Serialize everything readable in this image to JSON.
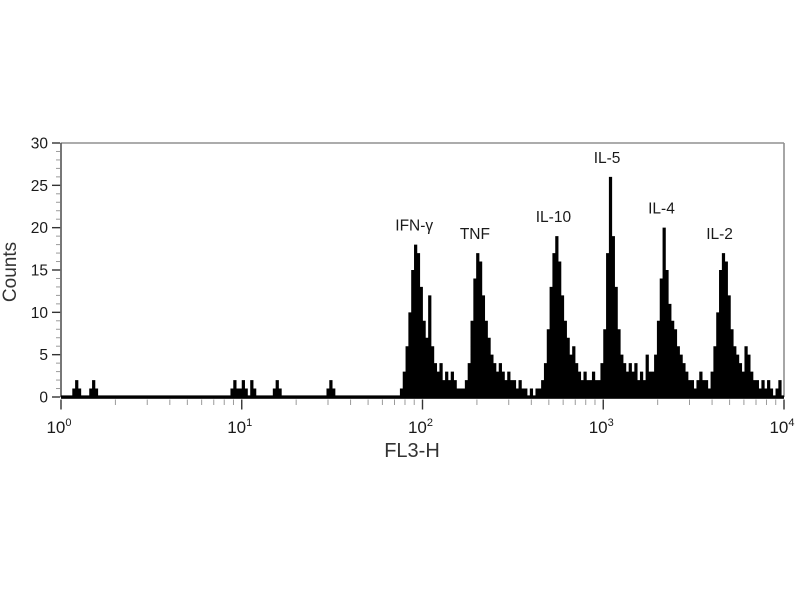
{
  "chart_data": {
    "type": "bar",
    "subtype": "flow-cytometry-histogram",
    "title": "",
    "xlabel": "FL3-H",
    "ylabel": "Counts",
    "x_scale": "log",
    "x_range": [
      1,
      10000
    ],
    "y_range": [
      0,
      30
    ],
    "grid": "off",
    "legend": "none",
    "y_major_tick_step": 5,
    "y_minor_tick_step": 1,
    "y_tick_labels": [
      "0",
      "5",
      "10",
      "15",
      "20",
      "25",
      "30"
    ],
    "x_tick_base": "10",
    "x_tick_exponents": [
      0,
      1,
      2,
      3,
      4
    ],
    "bins_per_decade": 64,
    "bins": [
      0,
      0,
      0,
      0,
      1,
      2,
      1,
      0,
      0,
      0,
      1,
      2,
      1,
      0,
      0,
      0,
      0,
      0,
      0,
      0,
      0,
      0,
      0,
      0,
      0,
      0,
      0,
      0,
      0,
      0,
      0,
      0,
      0,
      0,
      0,
      0,
      0,
      0,
      0,
      0,
      0,
      0,
      0,
      0,
      0,
      0,
      0,
      0,
      0,
      0,
      0,
      0,
      0,
      0,
      0,
      0,
      0,
      0,
      0,
      0,
      1,
      2,
      1,
      1,
      2,
      1,
      0,
      2,
      1,
      0,
      0,
      0,
      0,
      0,
      0,
      1,
      2,
      1,
      0,
      0,
      0,
      0,
      0,
      0,
      0,
      0,
      0,
      0,
      0,
      0,
      0,
      0,
      0,
      0,
      1,
      2,
      1,
      0,
      0,
      0,
      0,
      0,
      0,
      0,
      0,
      0,
      0,
      0,
      0,
      0,
      0,
      0,
      0,
      0,
      0,
      0,
      0,
      0,
      0,
      0,
      1,
      3,
      6,
      10,
      15,
      18,
      17,
      13,
      9,
      7,
      12,
      6,
      4,
      3,
      4,
      2,
      3,
      2,
      3,
      2,
      1,
      1,
      1,
      2,
      4,
      9,
      14,
      17,
      16,
      12,
      9,
      7,
      5,
      4,
      3,
      4,
      3,
      2,
      3,
      2,
      2,
      1,
      2,
      1,
      1,
      0,
      1,
      0,
      1,
      1,
      2,
      4,
      8,
      13,
      17,
      19,
      16,
      12,
      9,
      7,
      5,
      6,
      4,
      3,
      2,
      3,
      2,
      2,
      3,
      2,
      2,
      4,
      8,
      17,
      26,
      19,
      13,
      8,
      5,
      4,
      3,
      4,
      3,
      4,
      2,
      3,
      2,
      5,
      3,
      3,
      5,
      9,
      14,
      20,
      15,
      11,
      9,
      8,
      6,
      5,
      4,
      3,
      2,
      2,
      1,
      2,
      3,
      2,
      2,
      1,
      3,
      6,
      10,
      15,
      17,
      16,
      12,
      8,
      6,
      5,
      4,
      3,
      6,
      5,
      3,
      2,
      2,
      1,
      2,
      1,
      2,
      1,
      0,
      1,
      2,
      0
    ],
    "peaks": [
      {
        "label": "IFN-γ",
        "x": 90,
        "count": 18
      },
      {
        "label": "TNF",
        "x": 195,
        "count": 17
      },
      {
        "label": "IL-10",
        "x": 530,
        "count": 19
      },
      {
        "label": "IL-5",
        "x": 1050,
        "count": 26
      },
      {
        "label": "IL-4",
        "x": 2100,
        "count": 20
      },
      {
        "label": "IL-2",
        "x": 4400,
        "count": 17
      }
    ]
  },
  "colors": {
    "background": "#ffffff",
    "bar": "#000000",
    "axis": "#555555",
    "border": "#909090",
    "tick_major": "#333333",
    "tick_minor": "#9a9a9a",
    "text": "#1a1a1a",
    "axis_title": "#333333"
  }
}
